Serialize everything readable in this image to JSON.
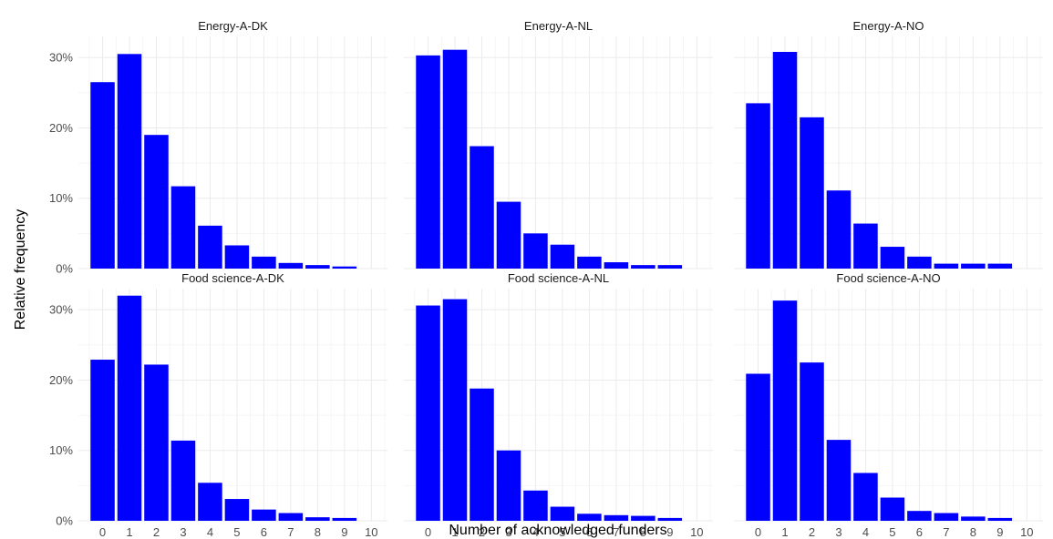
{
  "chart_data": {
    "type": "bar",
    "xlabel": "Number of acknowledged funders",
    "ylabel": "Relative frequency",
    "x_ticks": [
      0,
      1,
      2,
      3,
      4,
      5,
      6,
      7,
      8,
      9,
      10
    ],
    "y_ticks": [
      0,
      10,
      20,
      30
    ],
    "y_tick_labels": [
      "0%",
      "10%",
      "20%",
      "30%"
    ],
    "ylim": [
      0,
      33
    ],
    "xlim": [
      -0.9,
      10.6
    ],
    "bar_color": "#0000ff",
    "grid": true,
    "layout": "2x3 facets",
    "panels": [
      {
        "title": "Energy-A-DK",
        "x": [
          0,
          1,
          2,
          3,
          4,
          5,
          6,
          7,
          8,
          9
        ],
        "values": [
          26.5,
          30.5,
          19.0,
          11.7,
          6.1,
          3.3,
          1.7,
          0.8,
          0.5,
          0.3
        ]
      },
      {
        "title": "Energy-A-NL",
        "x": [
          0,
          1,
          2,
          3,
          4,
          5,
          6,
          7,
          8,
          9
        ],
        "values": [
          30.3,
          31.1,
          17.4,
          9.5,
          5.0,
          3.4,
          1.7,
          0.9,
          0.5,
          0.5
        ]
      },
      {
        "title": "Energy-A-NO",
        "x": [
          0,
          1,
          2,
          3,
          4,
          5,
          6,
          7,
          8,
          9
        ],
        "values": [
          23.5,
          30.8,
          21.5,
          11.1,
          6.4,
          3.1,
          1.7,
          0.7,
          0.7,
          0.7
        ]
      },
      {
        "title": "Food science-A-DK",
        "x": [
          0,
          1,
          2,
          3,
          4,
          5,
          6,
          7,
          8,
          9
        ],
        "values": [
          22.9,
          32.0,
          22.2,
          11.4,
          5.4,
          3.1,
          1.6,
          1.1,
          0.5,
          0.4
        ]
      },
      {
        "title": "Food science-A-NL",
        "x": [
          0,
          1,
          2,
          3,
          4,
          5,
          6,
          7,
          8,
          9
        ],
        "values": [
          30.6,
          31.5,
          18.8,
          10.0,
          4.3,
          2.0,
          1.0,
          0.8,
          0.7,
          0.4
        ]
      },
      {
        "title": "Food science-A-NO",
        "x": [
          0,
          1,
          2,
          3,
          4,
          5,
          6,
          7,
          8,
          9
        ],
        "values": [
          20.9,
          31.3,
          22.5,
          11.5,
          6.8,
          3.3,
          1.4,
          1.1,
          0.6,
          0.4
        ]
      }
    ]
  }
}
